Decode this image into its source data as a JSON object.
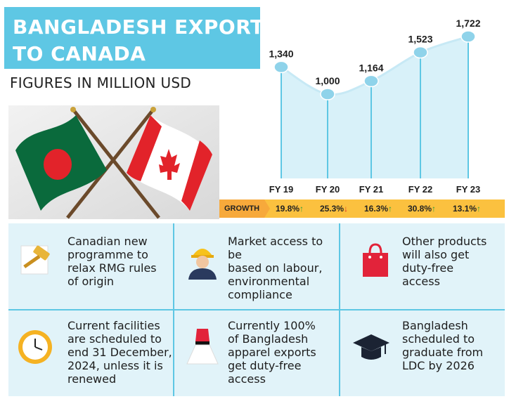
{
  "header": {
    "title_line1": "BANGLADESH EXPORTS",
    "title_line2": "TO CANADA",
    "subtitle": "FIGURES IN MILLION USD"
  },
  "colors": {
    "accent": "#5ec7e4",
    "growth_bg": "#fbc13f",
    "up": "#2e9e3a",
    "down": "#e03224",
    "bangladesh_green": "#0a6a3c",
    "bangladesh_red": "#e2232a",
    "canada_red": "#e2232a"
  },
  "chart_data": {
    "type": "area",
    "categories": [
      "FY 19",
      "FY 20",
      "FY 21",
      "FY 22",
      "FY 23"
    ],
    "values": [
      1340,
      1000,
      1164,
      1523,
      1722
    ],
    "value_labels": [
      "1,340",
      "1,000",
      "1,164",
      "1,523",
      "1,722"
    ],
    "xlabel": "",
    "ylabel": "",
    "ylim": [
      0,
      1800
    ],
    "grid": false
  },
  "growth": {
    "label": "GROWTH",
    "items": [
      {
        "value": "19.8%",
        "direction": "up"
      },
      {
        "value": "25.3%",
        "direction": "down"
      },
      {
        "value": "16.3%",
        "direction": "up"
      },
      {
        "value": "30.8%",
        "direction": "up"
      },
      {
        "value": "13.1%",
        "direction": "up"
      }
    ]
  },
  "facts": [
    {
      "icon": "gavel-icon",
      "lines": [
        "Canadian new",
        "programme to",
        "relax RMG rules",
        "of origin"
      ]
    },
    {
      "icon": "worker-icon",
      "lines": [
        "Market access to be",
        "based on labour,",
        "environmental",
        "compliance"
      ]
    },
    {
      "icon": "shopping-bag-icon",
      "lines": [
        "Other products",
        "will also get",
        "duty-free",
        "access"
      ]
    },
    {
      "icon": "clock-icon",
      "lines": [
        "Current facilities",
        "are scheduled to",
        "end 31 December,",
        "2024, unless it is",
        "renewed"
      ]
    },
    {
      "icon": "dress-icon",
      "lines": [
        "Currently 100%",
        "of Bangladesh",
        "apparel exports",
        "get duty-free",
        "access"
      ]
    },
    {
      "icon": "graduation-cap-icon",
      "lines": [
        "Bangladesh",
        "scheduled to",
        "graduate from",
        "LDC by 2026"
      ]
    }
  ]
}
